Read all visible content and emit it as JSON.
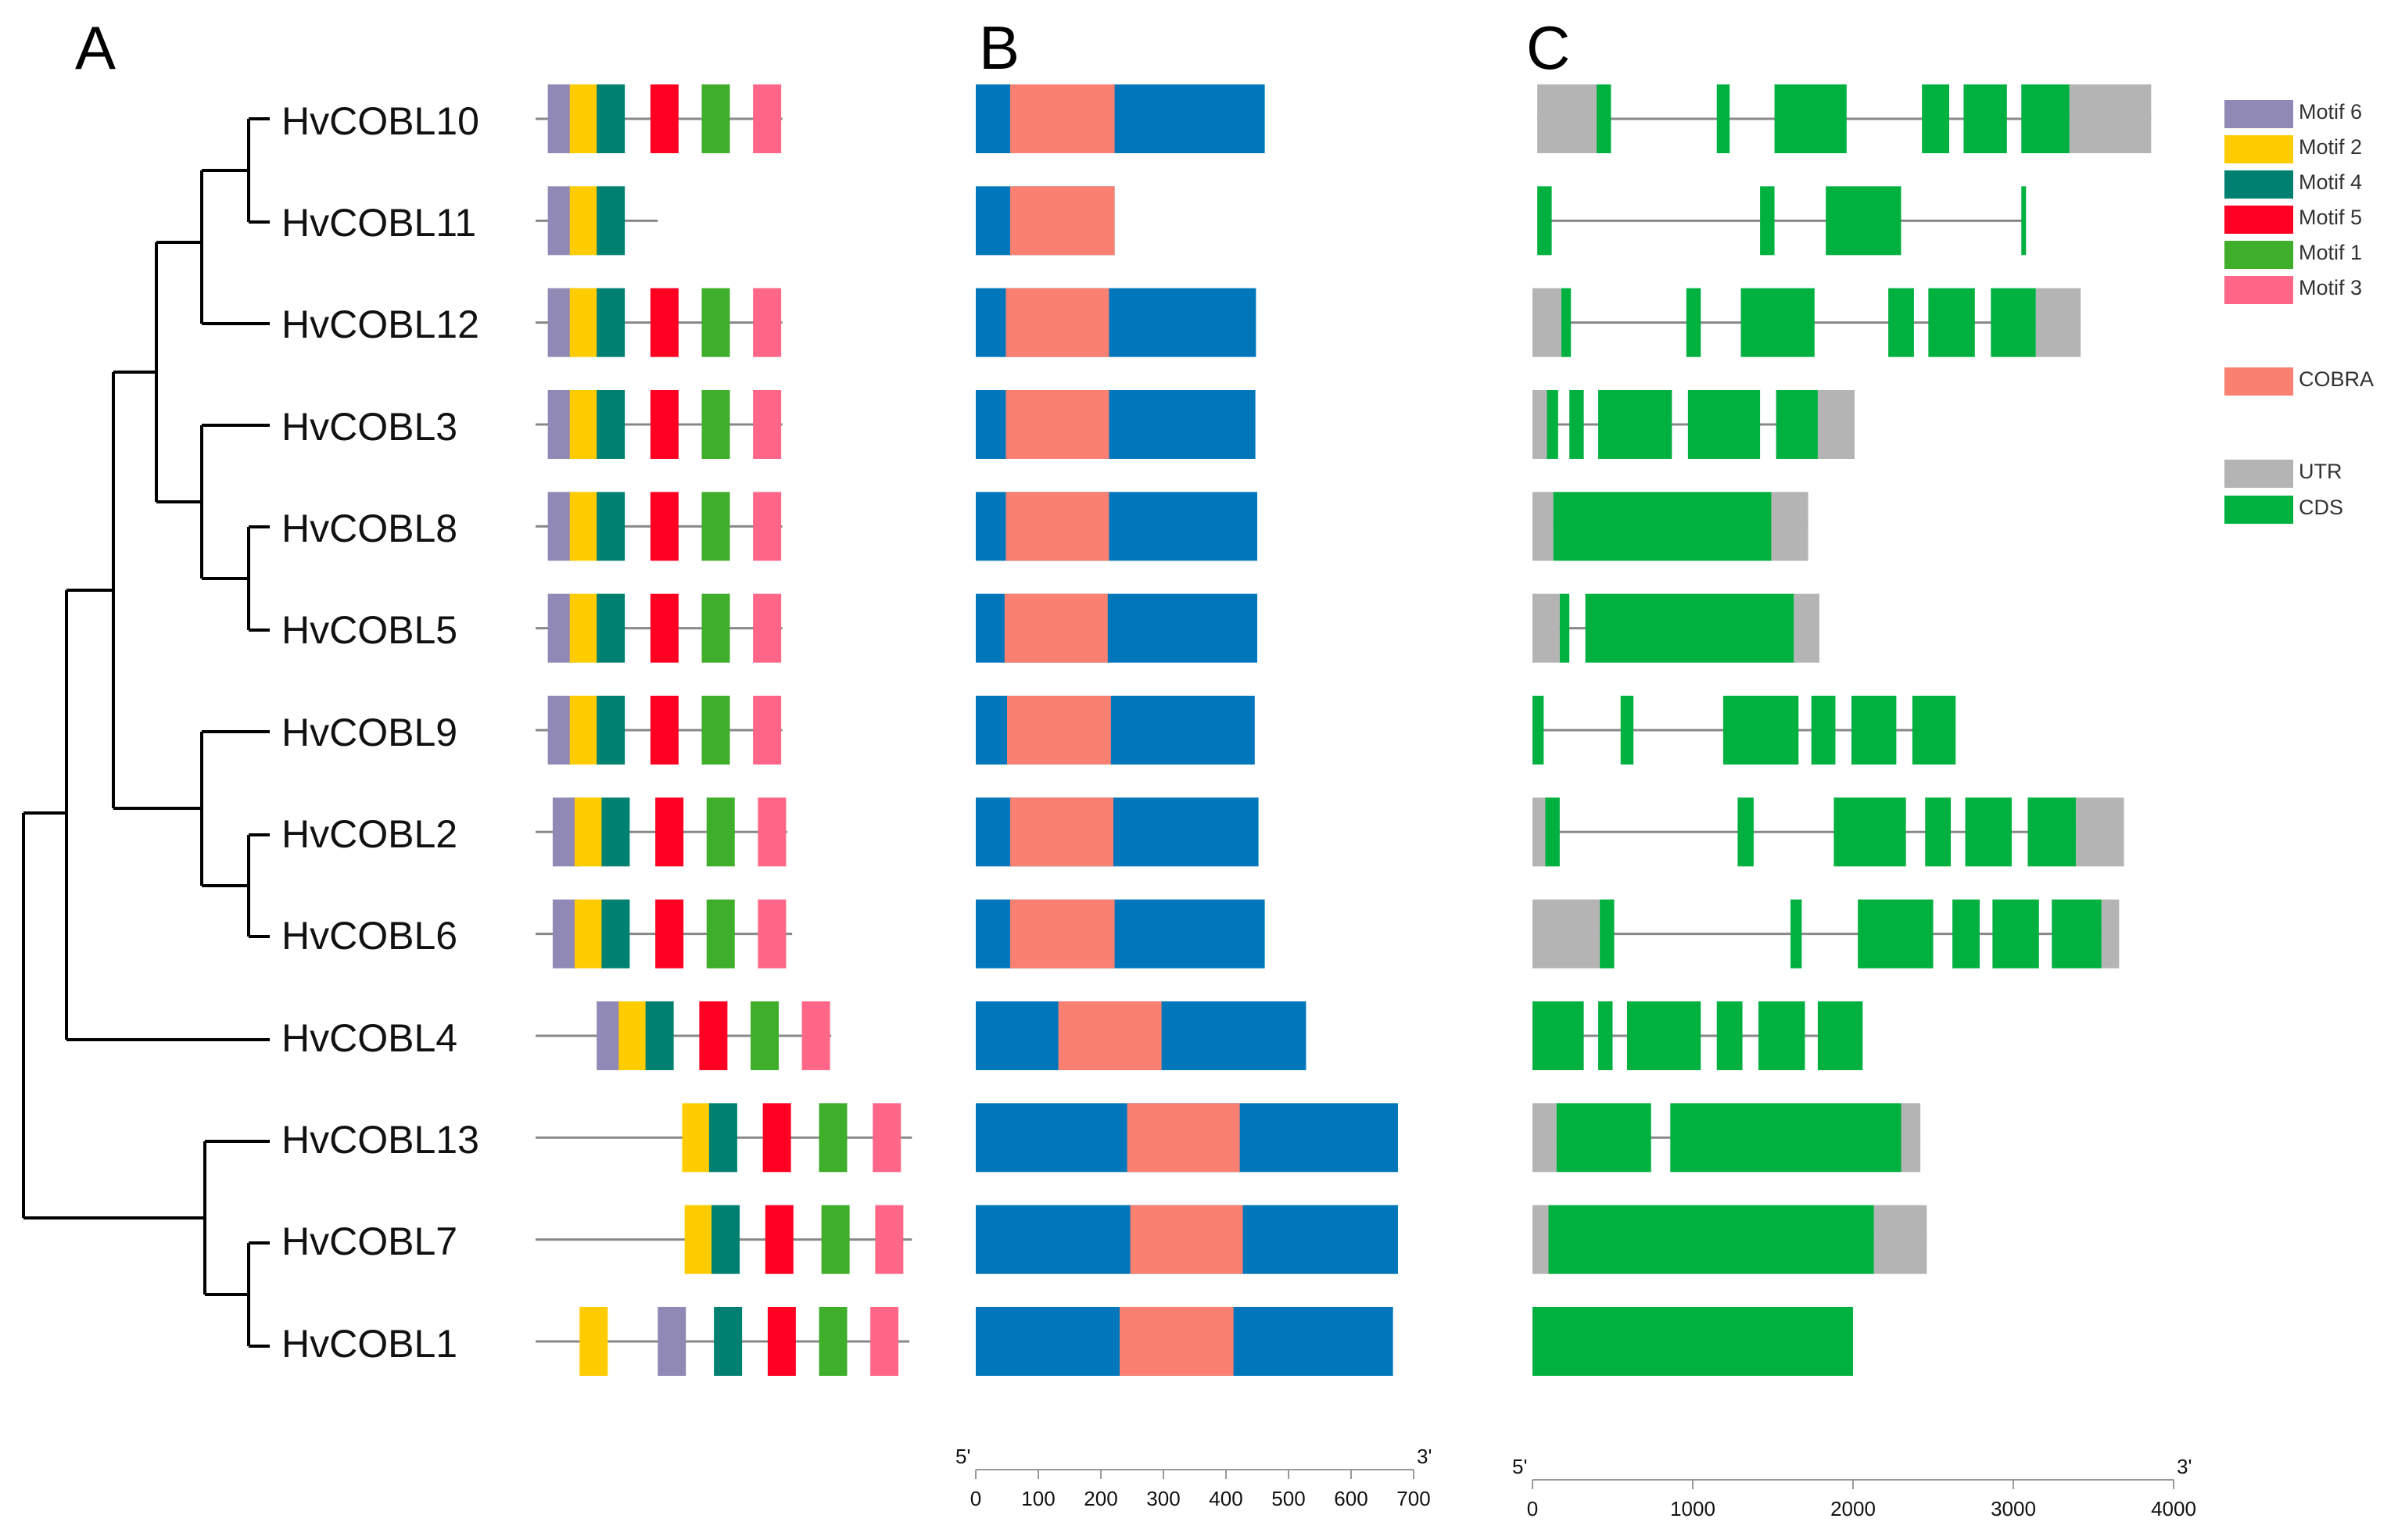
{
  "panels": {
    "a": "A",
    "b": "B",
    "c": "C"
  },
  "genes": [
    "HvCOBL10",
    "HvCOBL11",
    "HvCOBL12",
    "HvCOBL3",
    "HvCOBL8",
    "HvCOBL5",
    "HvCOBL9",
    "HvCOBL2",
    "HvCOBL6",
    "HvCOBL4",
    "HvCOBL13",
    "HvCOBL7",
    "HvCOBL1"
  ],
  "legend": {
    "motifs": [
      {
        "label": "Motif 6",
        "color": "#9089b5"
      },
      {
        "label": "Motif 2",
        "color": "#ffcc00"
      },
      {
        "label": "Motif 4",
        "color": "#008070"
      },
      {
        "label": "Motif 5",
        "color": "#ff0022"
      },
      {
        "label": "Motif 1",
        "color": "#3fae2a"
      },
      {
        "label": "Motif 3",
        "color": "#ff6688"
      }
    ],
    "domain": {
      "label": "COBRA",
      "color": "#fa8072"
    },
    "structure": [
      {
        "label": "UTR",
        "color": "#b4b4b4"
      },
      {
        "label": "CDS",
        "color": "#00b140"
      }
    ]
  },
  "colors": {
    "protein": "#0077bb",
    "cobra": "#fa8072",
    "utr": "#b4b4b4",
    "cds": "#00b140",
    "line": "#888888"
  },
  "motif_axis": {
    "max": 800
  },
  "motif_rows": [
    {
      "len": 505,
      "motifs": [
        [
          25,
          "m6"
        ],
        [
          70,
          "m2"
        ],
        [
          125,
          "m4"
        ],
        [
          235,
          "m5"
        ],
        [
          340,
          "m1"
        ],
        [
          445,
          "m3"
        ]
      ]
    },
    {
      "len": 250,
      "motifs": [
        [
          25,
          "m6"
        ],
        [
          70,
          "m2"
        ],
        [
          125,
          "m4"
        ]
      ]
    },
    {
      "len": 505,
      "motifs": [
        [
          25,
          "m6"
        ],
        [
          70,
          "m2"
        ],
        [
          125,
          "m4"
        ],
        [
          235,
          "m5"
        ],
        [
          340,
          "m1"
        ],
        [
          445,
          "m3"
        ]
      ]
    },
    {
      "len": 505,
      "motifs": [
        [
          25,
          "m6"
        ],
        [
          70,
          "m2"
        ],
        [
          125,
          "m4"
        ],
        [
          235,
          "m5"
        ],
        [
          340,
          "m1"
        ],
        [
          445,
          "m3"
        ]
      ]
    },
    {
      "len": 505,
      "motifs": [
        [
          25,
          "m6"
        ],
        [
          70,
          "m2"
        ],
        [
          125,
          "m4"
        ],
        [
          235,
          "m5"
        ],
        [
          340,
          "m1"
        ],
        [
          445,
          "m3"
        ]
      ]
    },
    {
      "len": 505,
      "motifs": [
        [
          25,
          "m6"
        ],
        [
          70,
          "m2"
        ],
        [
          125,
          "m4"
        ],
        [
          235,
          "m5"
        ],
        [
          340,
          "m1"
        ],
        [
          445,
          "m3"
        ]
      ]
    },
    {
      "len": 505,
      "motifs": [
        [
          25,
          "m6"
        ],
        [
          70,
          "m2"
        ],
        [
          125,
          "m4"
        ],
        [
          235,
          "m5"
        ],
        [
          340,
          "m1"
        ],
        [
          445,
          "m3"
        ]
      ]
    },
    {
      "len": 515,
      "motifs": [
        [
          35,
          "m6"
        ],
        [
          80,
          "m2"
        ],
        [
          135,
          "m4"
        ],
        [
          245,
          "m5"
        ],
        [
          350,
          "m1"
        ],
        [
          455,
          "m3"
        ]
      ]
    },
    {
      "len": 525,
      "motifs": [
        [
          35,
          "m6"
        ],
        [
          80,
          "m2"
        ],
        [
          135,
          "m4"
        ],
        [
          245,
          "m5"
        ],
        [
          350,
          "m1"
        ],
        [
          455,
          "m3"
        ]
      ]
    },
    {
      "len": 605,
      "motifs": [
        [
          125,
          "m6"
        ],
        [
          170,
          "m2"
        ],
        [
          225,
          "m4"
        ],
        [
          335,
          "m5"
        ],
        [
          440,
          "m1"
        ],
        [
          545,
          "m3"
        ]
      ]
    },
    {
      "len": 770,
      "motifs": [
        [
          300,
          "m2"
        ],
        [
          355,
          "m4"
        ],
        [
          465,
          "m5"
        ],
        [
          580,
          "m1"
        ],
        [
          690,
          "m3"
        ]
      ]
    },
    {
      "len": 770,
      "motifs": [
        [
          305,
          "m2"
        ],
        [
          360,
          "m4"
        ],
        [
          470,
          "m5"
        ],
        [
          585,
          "m1"
        ],
        [
          695,
          "m3"
        ]
      ]
    },
    {
      "len": 765,
      "motifs": [
        [
          90,
          "m2"
        ],
        [
          250,
          "m6"
        ],
        [
          365,
          "m4"
        ],
        [
          475,
          "m5"
        ],
        [
          580,
          "m1"
        ],
        [
          685,
          "m3"
        ]
      ]
    }
  ],
  "domain_axis": {
    "ticks": [
      0,
      100,
      200,
      300,
      400,
      500,
      600,
      700
    ],
    "five_prime": "5'",
    "three_prime": "3'"
  },
  "domain_rows": [
    {
      "len": 462,
      "cobra": [
        55,
        222
      ]
    },
    {
      "len": 222,
      "cobra": [
        55,
        222
      ]
    },
    {
      "len": 448,
      "cobra": [
        48,
        213
      ]
    },
    {
      "len": 447,
      "cobra": [
        48,
        213
      ]
    },
    {
      "len": 450,
      "cobra": [
        48,
        213
      ]
    },
    {
      "len": 450,
      "cobra": [
        46,
        211
      ]
    },
    {
      "len": 446,
      "cobra": [
        50,
        216
      ]
    },
    {
      "len": 452,
      "cobra": [
        55,
        220
      ]
    },
    {
      "len": 462,
      "cobra": [
        55,
        222
      ]
    },
    {
      "len": 528,
      "cobra": [
        132,
        297
      ]
    },
    {
      "len": 675,
      "cobra": [
        242,
        422
      ]
    },
    {
      "len": 675,
      "cobra": [
        247,
        427
      ]
    },
    {
      "len": 667,
      "cobra": [
        230,
        412
      ]
    }
  ],
  "structure_axis": {
    "ticks": [
      0,
      1000,
      2000,
      3000,
      4000
    ],
    "five_prime": "5'",
    "three_prime": "3'"
  },
  "structure_rows": [
    {
      "start": 30,
      "end": 3860,
      "utr": [
        [
          30,
          400
        ],
        [
          3350,
          3860
        ]
      ],
      "cds": [
        [
          400,
          490
        ],
        [
          1150,
          1230
        ],
        [
          1510,
          1960
        ],
        [
          2430,
          2600
        ],
        [
          2690,
          2960
        ],
        [
          3050,
          3350
        ]
      ]
    },
    {
      "start": 30,
      "end": 3060,
      "utr": [],
      "cds": [
        [
          30,
          120
        ],
        [
          1420,
          1510
        ],
        [
          1830,
          2300
        ],
        [
          3050,
          3060
        ]
      ]
    },
    {
      "start": 0,
      "end": 3420,
      "utr": [
        [
          0,
          180
        ],
        [
          3140,
          3420
        ]
      ],
      "cds": [
        [
          180,
          240
        ],
        [
          960,
          1050
        ],
        [
          1300,
          1760
        ],
        [
          2220,
          2380
        ],
        [
          2470,
          2760
        ],
        [
          2860,
          3140
        ]
      ]
    },
    {
      "start": 0,
      "end": 2010,
      "utr": [
        [
          0,
          90
        ],
        [
          1780,
          2010
        ]
      ],
      "cds": [
        [
          90,
          160
        ],
        [
          230,
          320
        ],
        [
          410,
          870
        ],
        [
          970,
          1420
        ],
        [
          1520,
          1780
        ]
      ]
    },
    {
      "start": 0,
      "end": 1720,
      "utr": [
        [
          0,
          130
        ],
        [
          1490,
          1720
        ]
      ],
      "cds": [
        [
          130,
          1490
        ]
      ]
    },
    {
      "start": 0,
      "end": 1790,
      "utr": [
        [
          0,
          170
        ],
        [
          1630,
          1790
        ]
      ],
      "cds": [
        [
          170,
          230
        ],
        [
          330,
          1630
        ]
      ]
    },
    {
      "start": 0,
      "end": 2640,
      "utr": [],
      "cds": [
        [
          0,
          70
        ],
        [
          550,
          630
        ],
        [
          1190,
          1660
        ],
        [
          1740,
          1890
        ],
        [
          1990,
          2270
        ],
        [
          2370,
          2640
        ]
      ]
    },
    {
      "start": 0,
      "end": 3690,
      "utr": [
        [
          0,
          80
        ],
        [
          3390,
          3690
        ]
      ],
      "cds": [
        [
          80,
          170
        ],
        [
          1280,
          1380
        ],
        [
          1880,
          2330
        ],
        [
          2450,
          2610
        ],
        [
          2700,
          2990
        ],
        [
          3090,
          3390
        ]
      ]
    },
    {
      "start": 0,
      "end": 3660,
      "utr": [
        [
          0,
          420
        ],
        [
          3550,
          3660
        ]
      ],
      "cds": [
        [
          420,
          510
        ],
        [
          1610,
          1680
        ],
        [
          2030,
          2500
        ],
        [
          2620,
          2790
        ],
        [
          2870,
          3160
        ],
        [
          3240,
          3550
        ]
      ]
    },
    {
      "start": 0,
      "end": 2060,
      "utr": [],
      "cds": [
        [
          0,
          320
        ],
        [
          410,
          500
        ],
        [
          590,
          1050
        ],
        [
          1150,
          1310
        ],
        [
          1410,
          1700
        ],
        [
          1780,
          2060
        ]
      ]
    },
    {
      "start": 0,
      "end": 2420,
      "utr": [
        [
          0,
          150
        ],
        [
          2300,
          2420
        ]
      ],
      "cds": [
        [
          150,
          740
        ],
        [
          860,
          2300
        ]
      ]
    },
    {
      "start": 0,
      "end": 2460,
      "utr": [
        [
          0,
          100
        ],
        [
          2130,
          2460
        ]
      ],
      "cds": [
        [
          100,
          2130
        ]
      ]
    },
    {
      "start": 0,
      "end": 2000,
      "utr": [],
      "cds": [
        [
          0,
          2000
        ]
      ]
    }
  ]
}
